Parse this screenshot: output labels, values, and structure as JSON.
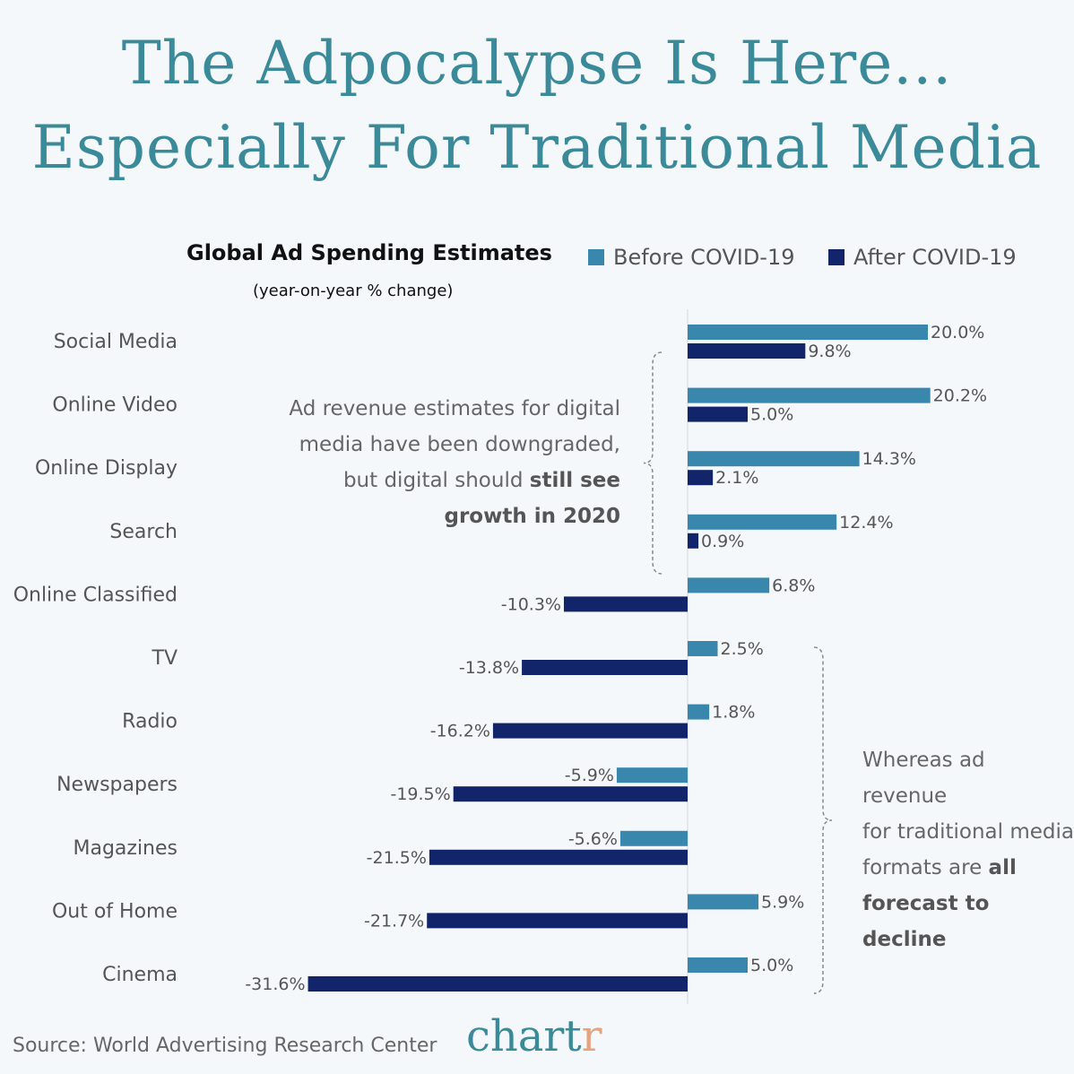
{
  "header": {
    "title_line1": "The Adpocalypse Is Here...",
    "title_line2": "Especially For Traditional Media"
  },
  "chart_data": {
    "type": "bar",
    "orientation": "horizontal",
    "title": "Global Ad Spending Estimates",
    "subtitle": "(year-on-year % change)",
    "categories": [
      "Social Media",
      "Online Video",
      "Online Display",
      "Search",
      "Online Classified",
      "TV",
      "Radio",
      "Newspapers",
      "Magazines",
      "Out of Home",
      "Cinema"
    ],
    "series": [
      {
        "name": "Before COVID-19",
        "color": "#3a87ad",
        "values": [
          20.0,
          20.2,
          14.3,
          12.4,
          6.8,
          2.5,
          1.8,
          -5.9,
          -5.6,
          5.9,
          5.0
        ]
      },
      {
        "name": "After COVID-19",
        "color": "#13256a",
        "values": [
          9.8,
          5.0,
          2.1,
          0.9,
          -10.3,
          -13.8,
          -16.2,
          -19.5,
          -21.5,
          -21.7,
          -31.6
        ]
      }
    ],
    "value_labels": {
      "Before COVID-19": [
        "20.0%",
        "20.2%",
        "14.3%",
        "12.4%",
        "6.8%",
        "2.5%",
        "1.8%",
        "-5.9%",
        "-5.6%",
        "5.9%",
        "5.0%"
      ],
      "After COVID-19": [
        "9.8%",
        "5.0%",
        "2.1%",
        "0.9%",
        "-10.3%",
        "-13.8%",
        "-16.2%",
        "-19.5%",
        "-21.5%",
        "-21.7%",
        "-31.6%"
      ]
    },
    "legend_position": "top-right",
    "grid": false
  },
  "annotations": {
    "digital_line1": "Ad revenue estimates for digital",
    "digital_line2": "media have been downgraded,",
    "digital_line3_plain": "but digital should ",
    "digital_line3_bold": "still see",
    "digital_line4_bold": "growth in 2020",
    "trad_line1": "Whereas ad revenue",
    "trad_line2": "for traditional media",
    "trad_line3_plain": "formats are ",
    "trad_line3_bold": "all",
    "trad_line4_bold": "forecast to decline"
  },
  "footer": {
    "source": "Source: World Advertising Research Center",
    "brand_main": "chart",
    "brand_accent": "r"
  }
}
